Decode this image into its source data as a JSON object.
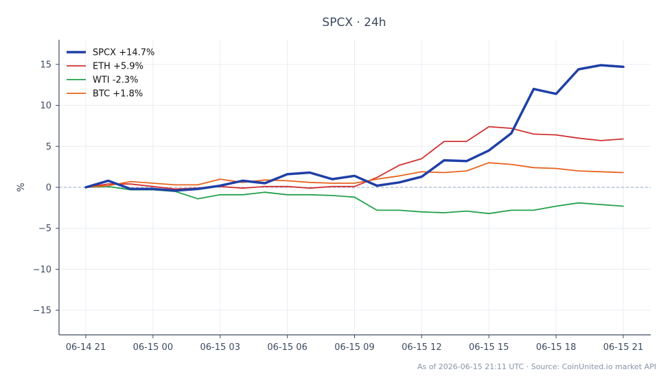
{
  "chart_data": {
    "type": "line",
    "title": "SPCX · 24h",
    "xlabel": "",
    "ylabel": "%",
    "x": [
      "06-14 21",
      "06-14 22",
      "06-14 23",
      "06-15 00",
      "06-15 01",
      "06-15 02",
      "06-15 03",
      "06-15 04",
      "06-15 05",
      "06-15 06",
      "06-15 07",
      "06-15 08",
      "06-15 09",
      "06-15 10",
      "06-15 11",
      "06-15 12",
      "06-15 13",
      "06-15 14",
      "06-15 15",
      "06-15 16",
      "06-15 17",
      "06-15 18",
      "06-15 19",
      "06-15 20",
      "06-15 21"
    ],
    "xticks": [
      "06-14 21",
      "06-15 00",
      "06-15 03",
      "06-15 06",
      "06-15 09",
      "06-15 12",
      "06-15 15",
      "06-15 18",
      "06-15 21"
    ],
    "yticks": [
      15,
      10,
      5,
      0,
      -5,
      -10,
      -15
    ],
    "ytick_labels": [
      "15",
      "10",
      "5",
      "0",
      "−5",
      "−10",
      "−15"
    ],
    "ylim": [
      -18,
      18
    ],
    "grid": true,
    "reference_line": 0,
    "legend_position": "top-left",
    "series": [
      {
        "name": "SPCX +14.7%",
        "color": "#1f3fa6",
        "width": 3.5,
        "values": [
          0,
          0.8,
          -0.2,
          -0.2,
          -0.4,
          -0.2,
          0.2,
          0.8,
          0.5,
          1.6,
          1.8,
          1.0,
          1.4,
          0.2,
          0.6,
          1.3,
          3.3,
          3.2,
          4.5,
          6.6,
          12.0,
          11.4,
          14.4,
          14.9,
          14.7
        ]
      },
      {
        "name": "ETH +5.9%",
        "color": "#d03030",
        "width": 1.8,
        "values": [
          0,
          0.4,
          0.4,
          0.1,
          -0.2,
          -0.1,
          0.1,
          -0.1,
          0.1,
          0.1,
          -0.1,
          0.1,
          0.1,
          1.2,
          2.7,
          3.5,
          5.6,
          5.6,
          7.4,
          7.2,
          6.5,
          6.4,
          6.0,
          5.7,
          5.9
        ]
      },
      {
        "name": "WTI -2.3%",
        "color": "#22a04a",
        "width": 1.8,
        "values": [
          0,
          0.1,
          -0.3,
          -0.3,
          -0.5,
          -1.4,
          -0.9,
          -0.9,
          -0.6,
          -0.9,
          -0.9,
          -1.0,
          -1.2,
          -2.8,
          -2.8,
          -3.0,
          -3.1,
          -2.9,
          -3.2,
          -2.8,
          -2.8,
          -2.3,
          -1.9,
          -2.1,
          -2.3
        ]
      },
      {
        "name": "BTC +1.8%",
        "color": "#e8621c",
        "width": 1.8,
        "values": [
          0,
          0.2,
          0.7,
          0.5,
          0.3,
          0.3,
          1.0,
          0.6,
          0.9,
          0.8,
          0.6,
          0.5,
          0.5,
          1.0,
          1.4,
          1.9,
          1.8,
          2.0,
          3.0,
          2.8,
          2.4,
          2.3,
          2.0,
          1.9,
          1.8
        ]
      }
    ],
    "footer": "As of 2026-06-15 21:11 UTC · Source: CoinUnited.io market API"
  },
  "colors": {
    "axis": "#3b4a5e",
    "grid": "#e9edf2",
    "zero_line": "#8fa3c8"
  }
}
